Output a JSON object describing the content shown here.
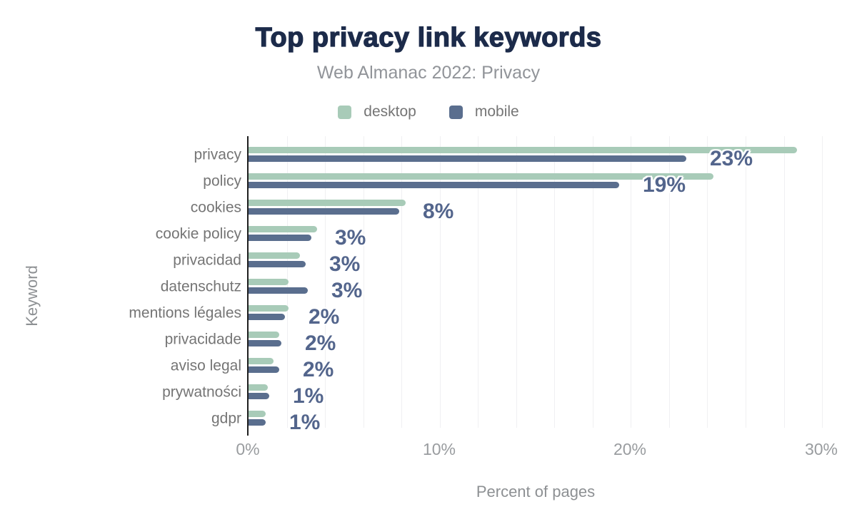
{
  "title": "Top privacy link keywords",
  "subtitle": "Web Almanac 2022: Privacy",
  "legend": [
    {
      "label": "desktop",
      "color": "#a8cbb8"
    },
    {
      "label": "mobile",
      "color": "#5a6e8e"
    }
  ],
  "colors": {
    "title": "#1c2b4a",
    "desktop_bar": "#a8cbb8",
    "mobile_bar": "#5a6e8e",
    "value_label": "#53658c",
    "axis_line": "#1f1f1f",
    "gridline": "#f0f0f2",
    "category_label": "#757575",
    "tick_label": "#999c9f"
  },
  "chart_data": {
    "type": "bar",
    "orientation": "horizontal",
    "title": "Top privacy link keywords",
    "subtitle": "Web Almanac 2022: Privacy",
    "xlabel": "Percent of pages",
    "ylabel": "Keyword",
    "xlim": [
      0,
      30.5
    ],
    "grid": "vertical gridlines every 2%",
    "legend_position": "top",
    "categories": [
      "privacy",
      "policy",
      "cookies",
      "cookie policy",
      "privacidad",
      "datenschutz",
      "mentions légales",
      "privacidade",
      "aviso legal",
      "prywatności",
      "gdpr"
    ],
    "series": [
      {
        "name": "desktop",
        "values": [
          28.7,
          24.3,
          8.2,
          3.6,
          2.7,
          2.1,
          2.1,
          1.6,
          1.3,
          1.0,
          0.9
        ]
      },
      {
        "name": "mobile",
        "values": [
          22.9,
          19.4,
          7.9,
          3.3,
          3.0,
          3.1,
          1.9,
          1.7,
          1.6,
          1.1,
          0.9
        ]
      }
    ],
    "value_labels": [
      "23%",
      "19%",
      "8%",
      "3%",
      "3%",
      "3%",
      "2%",
      "2%",
      "2%",
      "1%",
      "1%"
    ],
    "value_labels_series": "mobile",
    "x_ticks": [
      {
        "label": "0%",
        "value": 0
      },
      {
        "label": "10%",
        "value": 10
      },
      {
        "label": "20%",
        "value": 20
      },
      {
        "label": "30%",
        "value": 30
      }
    ]
  }
}
